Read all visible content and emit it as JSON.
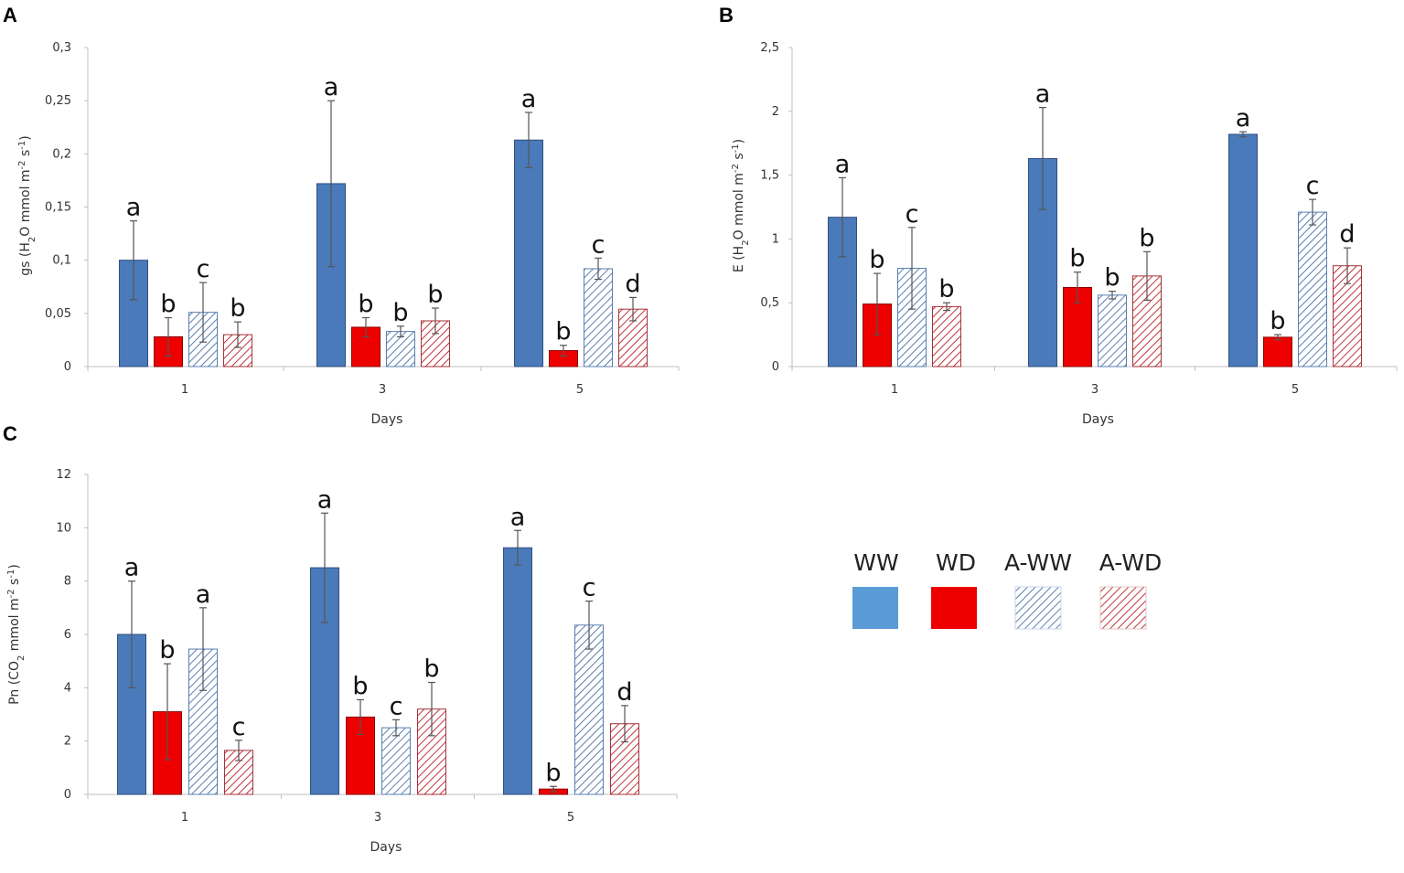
{
  "colors": {
    "WW": "#4a7ab9",
    "WD": "#ee0000",
    "A_WW": "#5a7fb0",
    "A_WD": "#c0333a"
  },
  "legend": {
    "items": [
      {
        "label": "WW",
        "key": "WW",
        "swatch": "#5b9bd5"
      },
      {
        "label": "WD",
        "key": "WD",
        "swatch": "#ee0000"
      },
      {
        "label": "A-WW",
        "key": "A_WW",
        "swatch": "hatch-blue"
      },
      {
        "label": "A-WD",
        "key": "A_WD",
        "swatch": "hatch-red"
      }
    ]
  },
  "chart_data": [
    {
      "panel": "A",
      "type": "bar",
      "categories": [
        "1",
        "3",
        "5"
      ],
      "xlabel": "Days",
      "ylabel_parts": [
        "gs (H",
        "2",
        "O mmol m",
        "-2",
        " s",
        "-1",
        ")"
      ],
      "ylim": [
        0,
        0.3
      ],
      "yticks": [
        {
          "v": 0,
          "label": "0"
        },
        {
          "v": 0.05,
          "label": "0,05"
        },
        {
          "v": 0.1,
          "label": "0,1"
        },
        {
          "v": 0.15,
          "label": "0,15"
        },
        {
          "v": 0.2,
          "label": "0,2"
        },
        {
          "v": 0.25,
          "label": "0,25"
        },
        {
          "v": 0.3,
          "label": "0,3"
        }
      ],
      "series": [
        {
          "name": "WW",
          "values": [
            0.1,
            0.172,
            0.213
          ],
          "errors": [
            0.037,
            0.078,
            0.026
          ],
          "letters": [
            "a",
            "a",
            "a"
          ]
        },
        {
          "name": "WD",
          "values": [
            0.028,
            0.037,
            0.015
          ],
          "errors": [
            0.018,
            0.009,
            0.005
          ],
          "letters": [
            "b",
            "b",
            "b"
          ]
        },
        {
          "name": "A-WW",
          "values": [
            0.051,
            0.033,
            0.092
          ],
          "errors": [
            0.028,
            0.005,
            0.01
          ],
          "letters": [
            "c",
            "b",
            "c"
          ]
        },
        {
          "name": "A-WD",
          "values": [
            0.03,
            0.043,
            0.054
          ],
          "errors": [
            0.012,
            0.012,
            0.011
          ],
          "letters": [
            "b",
            "b",
            "d"
          ]
        }
      ]
    },
    {
      "panel": "B",
      "type": "bar",
      "categories": [
        "1",
        "3",
        "5"
      ],
      "xlabel": "Days",
      "ylabel_parts": [
        "E (H",
        "2",
        "O mmol m",
        "-2",
        " s",
        "-1",
        ")"
      ],
      "ylim": [
        0,
        2.5
      ],
      "yticks": [
        {
          "v": 0,
          "label": "0"
        },
        {
          "v": 0.5,
          "label": "0,5"
        },
        {
          "v": 1,
          "label": "1"
        },
        {
          "v": 1.5,
          "label": "1,5"
        },
        {
          "v": 2,
          "label": "2"
        },
        {
          "v": 2.5,
          "label": "2,5"
        }
      ],
      "series": [
        {
          "name": "WW",
          "values": [
            1.17,
            1.63,
            1.82
          ],
          "errors": [
            0.31,
            0.4,
            0.02
          ],
          "letters": [
            "a",
            "a",
            "a"
          ]
        },
        {
          "name": "WD",
          "values": [
            0.49,
            0.62,
            0.23
          ],
          "errors": [
            0.24,
            0.12,
            0.02
          ],
          "letters": [
            "b",
            "b",
            "b"
          ]
        },
        {
          "name": "A-WW",
          "values": [
            0.77,
            0.56,
            1.21
          ],
          "errors": [
            0.32,
            0.03,
            0.1
          ],
          "letters": [
            "c",
            "b",
            "c"
          ]
        },
        {
          "name": "A-WD",
          "values": [
            0.47,
            0.71,
            0.79
          ],
          "errors": [
            0.03,
            0.19,
            0.14
          ],
          "letters": [
            "b",
            "b",
            "d"
          ]
        }
      ]
    },
    {
      "panel": "C",
      "type": "bar",
      "categories": [
        "1",
        "3",
        "5"
      ],
      "xlabel": "Days",
      "ylabel_parts": [
        "Pn (CO",
        "2",
        " mmol m",
        "-2",
        " s",
        "-1",
        ")"
      ],
      "ylim": [
        0,
        12
      ],
      "yticks": [
        {
          "v": 0,
          "label": "0"
        },
        {
          "v": 2,
          "label": "2"
        },
        {
          "v": 4,
          "label": "4"
        },
        {
          "v": 6,
          "label": "6"
        },
        {
          "v": 8,
          "label": "8"
        },
        {
          "v": 10,
          "label": "10"
        },
        {
          "v": 12,
          "label": "12"
        }
      ],
      "series": [
        {
          "name": "WW",
          "values": [
            6.0,
            8.5,
            9.25
          ],
          "errors": [
            2.0,
            2.05,
            0.65
          ],
          "letters": [
            "a",
            "a",
            "a"
          ]
        },
        {
          "name": "WD",
          "values": [
            3.1,
            2.9,
            0.2
          ],
          "errors": [
            1.8,
            0.65,
            0.1
          ],
          "letters": [
            "b",
            "b",
            "b"
          ]
        },
        {
          "name": "A-WW",
          "values": [
            5.45,
            2.5,
            6.35
          ],
          "errors": [
            1.55,
            0.3,
            0.9
          ],
          "letters": [
            "a",
            "c",
            "c"
          ]
        },
        {
          "name": "A-WD",
          "values": [
            1.65,
            3.2,
            2.65
          ],
          "errors": [
            0.38,
            1.0,
            0.68
          ],
          "letters": [
            "c",
            "b",
            "d"
          ]
        }
      ]
    }
  ]
}
